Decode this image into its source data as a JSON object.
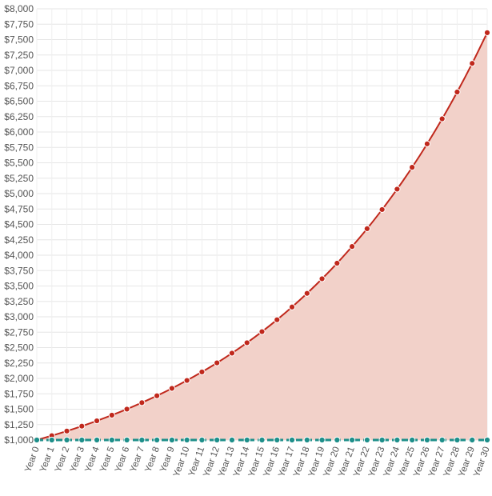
{
  "chart_data": {
    "type": "area",
    "title": "",
    "xlabel": "",
    "ylabel": "",
    "ylim": [
      1000,
      8000
    ],
    "y_tick_step": 250,
    "y_tick_format": "currency-usd",
    "grid": true,
    "legend": "none",
    "categories": [
      "Year 0",
      "Year 1",
      "Year 2",
      "Year 3",
      "Year 4",
      "Year 5",
      "Year 6",
      "Year 7",
      "Year 8",
      "Year 9",
      "Year 10",
      "Year 11",
      "Year 12",
      "Year 13",
      "Year 14",
      "Year 15",
      "Year 16",
      "Year 17",
      "Year 18",
      "Year 19",
      "Year 20",
      "Year 21",
      "Year 22",
      "Year 23",
      "Year 24",
      "Year 25",
      "Year 26",
      "Year 27",
      "Year 28",
      "Year 29",
      "Year 30"
    ],
    "series": [
      {
        "color": "#c0281c",
        "fill": "#f2d1c9",
        "values": [
          1000,
          1070,
          1145,
          1225,
          1311,
          1403,
          1501,
          1606,
          1718,
          1838,
          1967,
          2105,
          2252,
          2410,
          2579,
          2759,
          2952,
          3159,
          3380,
          3617,
          3870,
          4141,
          4430,
          4741,
          5072,
          5427,
          5807,
          6214,
          6649,
          7114,
          7612
        ]
      },
      {
        "color": "#1e8f8a",
        "fill": "none",
        "dashed": true,
        "values": [
          1000,
          1000,
          1000,
          1000,
          1000,
          1000,
          1000,
          1000,
          1000,
          1000,
          1000,
          1000,
          1000,
          1000,
          1000,
          1000,
          1000,
          1000,
          1000,
          1000,
          1000,
          1000,
          1000,
          1000,
          1000,
          1000,
          1000,
          1000,
          1000,
          1000,
          1000
        ]
      }
    ]
  }
}
